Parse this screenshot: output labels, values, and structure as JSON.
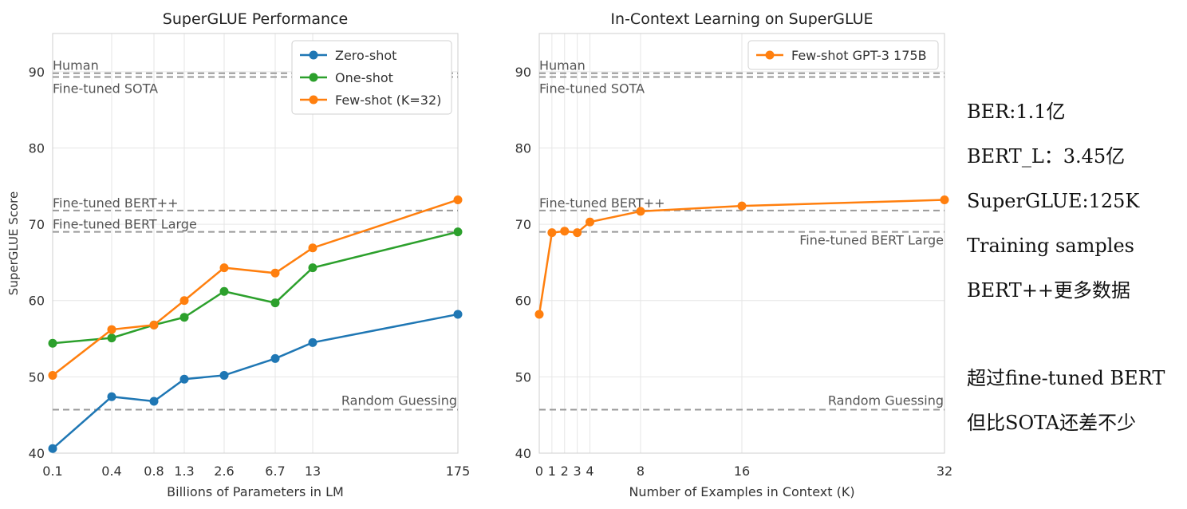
{
  "chart_data": [
    {
      "type": "line",
      "title": "SuperGLUE Performance",
      "xlabel": "Billions of Parameters in LM",
      "ylabel": "SuperGLUE Score",
      "ylim": [
        40,
        95
      ],
      "yticks": [
        40,
        50,
        60,
        70,
        80,
        90
      ],
      "x_scale": "log",
      "categories": [
        "0.1",
        "0.4",
        "0.8",
        "1.3",
        "2.6",
        "6.7",
        "13",
        "175"
      ],
      "series": [
        {
          "name": "Zero-shot",
          "color": "#1f77b4",
          "values": [
            40.6,
            47.4,
            46.8,
            49.7,
            50.2,
            52.4,
            54.5,
            58.2
          ]
        },
        {
          "name": "One-shot",
          "color": "#2ca02c",
          "values": [
            54.4,
            55.1,
            56.8,
            57.8,
            61.2,
            59.7,
            64.3,
            69.0
          ]
        },
        {
          "name": "Few-shot (K=32)",
          "color": "#ff7f0e",
          "values": [
            50.2,
            56.2,
            56.8,
            60.0,
            64.3,
            63.6,
            66.9,
            73.2
          ]
        }
      ],
      "reference_lines": [
        {
          "label": "Human",
          "value": 89.8
        },
        {
          "label": "Fine-tuned SOTA",
          "value": 89.3
        },
        {
          "label": "Fine-tuned BERT++",
          "value": 71.8
        },
        {
          "label": "Fine-tuned BERT Large",
          "value": 69.0
        },
        {
          "label": "Random Guessing",
          "value": 45.7
        }
      ],
      "legend": "top-right",
      "grid": true
    },
    {
      "type": "line",
      "title": "In-Context Learning on SuperGLUE",
      "xlabel": "Number of Examples in Context (K)",
      "ylabel": "",
      "ylim": [
        40,
        95
      ],
      "yticks": [
        40,
        50,
        60,
        70,
        80,
        90
      ],
      "xlim": [
        0,
        32
      ],
      "xticks": [
        0,
        1,
        2,
        3,
        4,
        8,
        16,
        32
      ],
      "series": [
        {
          "name": "Few-shot GPT-3 175B",
          "color": "#ff7f0e",
          "x": [
            0,
            1,
            2,
            3,
            4,
            8,
            16,
            32
          ],
          "values": [
            58.2,
            68.9,
            69.1,
            68.9,
            70.3,
            71.7,
            72.4,
            73.2
          ]
        }
      ],
      "reference_lines": [
        {
          "label": "Human",
          "value": 89.8
        },
        {
          "label": "Fine-tuned SOTA",
          "value": 89.3
        },
        {
          "label": "Fine-tuned BERT++",
          "value": 71.8
        },
        {
          "label": "Fine-tuned BERT Large",
          "value": 69.0
        },
        {
          "label": "Random Guessing",
          "value": 45.7
        }
      ],
      "legend": "top-right",
      "grid": true
    }
  ],
  "notes": [
    "BER:1.1亿",
    "BERT_L：3.45亿",
    "SuperGLUE:125K",
    "Training samples",
    "BERT++更多数据",
    "",
    "超过fine-tuned BERT",
    "但比SOTA还差不少"
  ]
}
